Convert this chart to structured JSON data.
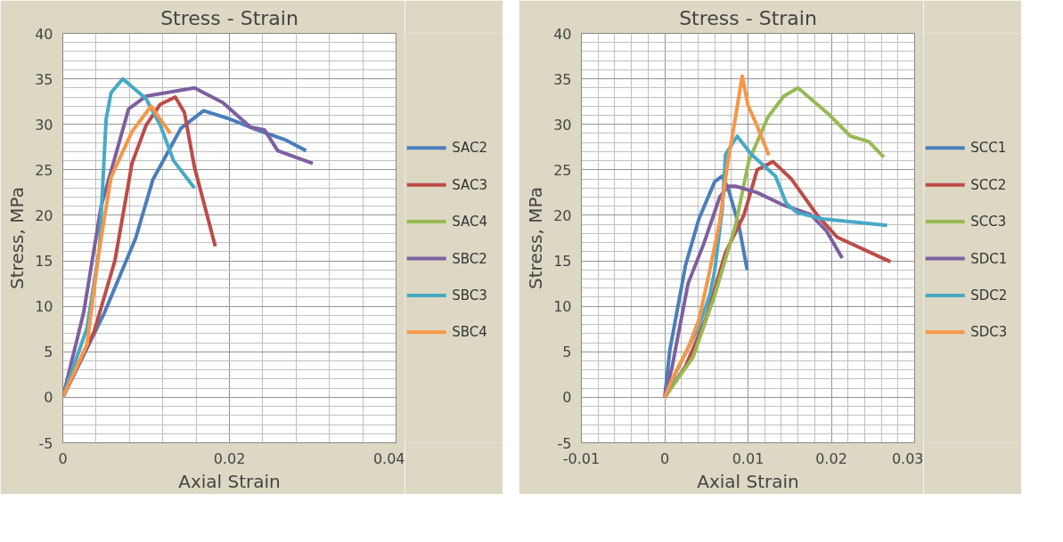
{
  "chart_data": [
    {
      "type": "line",
      "title": "Stress - Strain",
      "xlabel": "Axial Strain",
      "ylabel": "Stress, MPa",
      "xlim": [
        0,
        0.04
      ],
      "ylim": [
        -5,
        40
      ],
      "xticks": [
        0,
        0.02,
        0.04
      ],
      "yticks": [
        -5,
        0,
        5,
        10,
        15,
        20,
        25,
        30,
        35,
        40
      ],
      "grid": true,
      "legend": "right",
      "marker": "none",
      "line_style": "solid",
      "series": [
        {
          "name": "SAC2",
          "color": "#4a7ebb",
          "x": [
            0,
            0.005,
            0.00875,
            0.0108,
            0.0142,
            0.0169,
            0.02,
            0.0233,
            0.0267,
            0.0292
          ],
          "values": [
            0,
            9.3,
            17.5,
            23.9,
            29.6,
            31.5,
            30.6,
            29.4,
            28.3,
            27.1
          ]
        },
        {
          "name": "SAC3",
          "color": "#be4b48",
          "x": [
            0,
            0.00375,
            0.00625,
            0.0083,
            0.01,
            0.0117,
            0.0135,
            0.0146,
            0.0158,
            0.0183
          ],
          "values": [
            0,
            7.2,
            15,
            25.7,
            29.9,
            32.2,
            33,
            31.3,
            25.3,
            16.6
          ]
        },
        {
          "name": "SAC4",
          "color": "#98b954"
        },
        {
          "name": "SBC2",
          "color": "#7d60a0",
          "x": [
            0,
            0.0025,
            0.0046,
            0.0079,
            0.01,
            0.0158,
            0.0192,
            0.0225,
            0.0242,
            0.0258,
            0.03
          ],
          "values": [
            0,
            9.3,
            21,
            31.7,
            33.1,
            34,
            32.4,
            29.7,
            29.4,
            27.1,
            25.7
          ]
        },
        {
          "name": "SBC3",
          "color": "#46aac5",
          "x": [
            0,
            0.0029,
            0.0044,
            0.0052,
            0.0058,
            0.0072,
            0.01,
            0.0117,
            0.0133,
            0.0158
          ],
          "values": [
            0,
            7.6,
            16.4,
            30.6,
            33.5,
            35,
            32.8,
            29.9,
            26,
            23
          ]
        },
        {
          "name": "SBC4",
          "color": "#f79646",
          "x": [
            0,
            0.0029,
            0.0044,
            0.0058,
            0.0083,
            0.0106,
            0.0129
          ],
          "values": [
            0,
            5.8,
            16.4,
            24.2,
            29.2,
            32,
            29
          ]
        }
      ]
    },
    {
      "type": "line",
      "title": "Stress - Strain",
      "xlabel": "Axial Strain",
      "ylabel": "Stress, MPa",
      "xlim": [
        -0.01,
        0.03
      ],
      "ylim": [
        -5,
        40
      ],
      "xticks": [
        -0.01,
        0,
        0.01,
        0.02,
        0.03
      ],
      "yticks": [
        -5,
        0,
        5,
        10,
        15,
        20,
        25,
        30,
        35,
        40
      ],
      "grid": true,
      "legend": "right",
      "marker": "none",
      "line_style": "solid",
      "series": [
        {
          "name": "SCC1",
          "color": "#4a7ebb",
          "x": [
            0,
            0.0006,
            0.0025,
            0.0041,
            0.006,
            0.0069,
            0.0076,
            0.0089,
            0.0099
          ],
          "values": [
            0,
            5.1,
            14.5,
            19.6,
            23.7,
            24.3,
            23,
            18.9,
            14
          ]
        },
        {
          "name": "SCC2",
          "color": "#be4b48",
          "x": [
            0,
            0.0025,
            0.005,
            0.0073,
            0.0095,
            0.0111,
            0.013,
            0.0152,
            0.0184,
            0.0207,
            0.0271
          ],
          "values": [
            0,
            3.4,
            8.8,
            15.9,
            20,
            25,
            25.9,
            24,
            19.9,
            17.6,
            14.9
          ]
        },
        {
          "name": "SCC3",
          "color": "#98b954",
          "x": [
            0,
            0.0034,
            0.006,
            0.0085,
            0.0101,
            0.0124,
            0.0143,
            0.016,
            0.0197,
            0.0223,
            0.0245,
            0.0263
          ],
          "values": [
            0,
            4.4,
            11.2,
            18.9,
            26,
            30.8,
            33.1,
            34,
            31.1,
            28.7,
            28.1,
            26.4
          ]
        },
        {
          "name": "SDC1",
          "color": "#7d60a0",
          "x": [
            0,
            0.0009,
            0.0028,
            0.0047,
            0.0066,
            0.0076,
            0.0085,
            0.0111,
            0.0143,
            0.0175,
            0.0194,
            0.0213
          ],
          "values": [
            0,
            3.4,
            12.5,
            16.9,
            22,
            23.2,
            23.2,
            22.5,
            21.1,
            20.1,
            18.3,
            15.3
          ]
        },
        {
          "name": "SDC2",
          "color": "#46aac5",
          "x": [
            0,
            0.0015,
            0.0041,
            0.0054,
            0.006,
            0.0069,
            0.0073,
            0.0087,
            0.0104,
            0.0133,
            0.0146,
            0.0159,
            0.019,
            0.0267
          ],
          "values": [
            0,
            3,
            7.8,
            11.2,
            13.9,
            20.6,
            26.7,
            28.7,
            26.7,
            24.3,
            21.3,
            20.3,
            19.6,
            18.9
          ]
        },
        {
          "name": "SDC3",
          "color": "#f79646",
          "x": [
            0,
            0.0009,
            0.0028,
            0.0041,
            0.0054,
            0.0066,
            0.0076,
            0.0085,
            0.0093,
            0.01,
            0.0111,
            0.0125
          ],
          "values": [
            0,
            2,
            5.4,
            8.5,
            13.9,
            19.3,
            26,
            30.8,
            35.3,
            32.1,
            29.8,
            26.6
          ]
        }
      ]
    }
  ]
}
